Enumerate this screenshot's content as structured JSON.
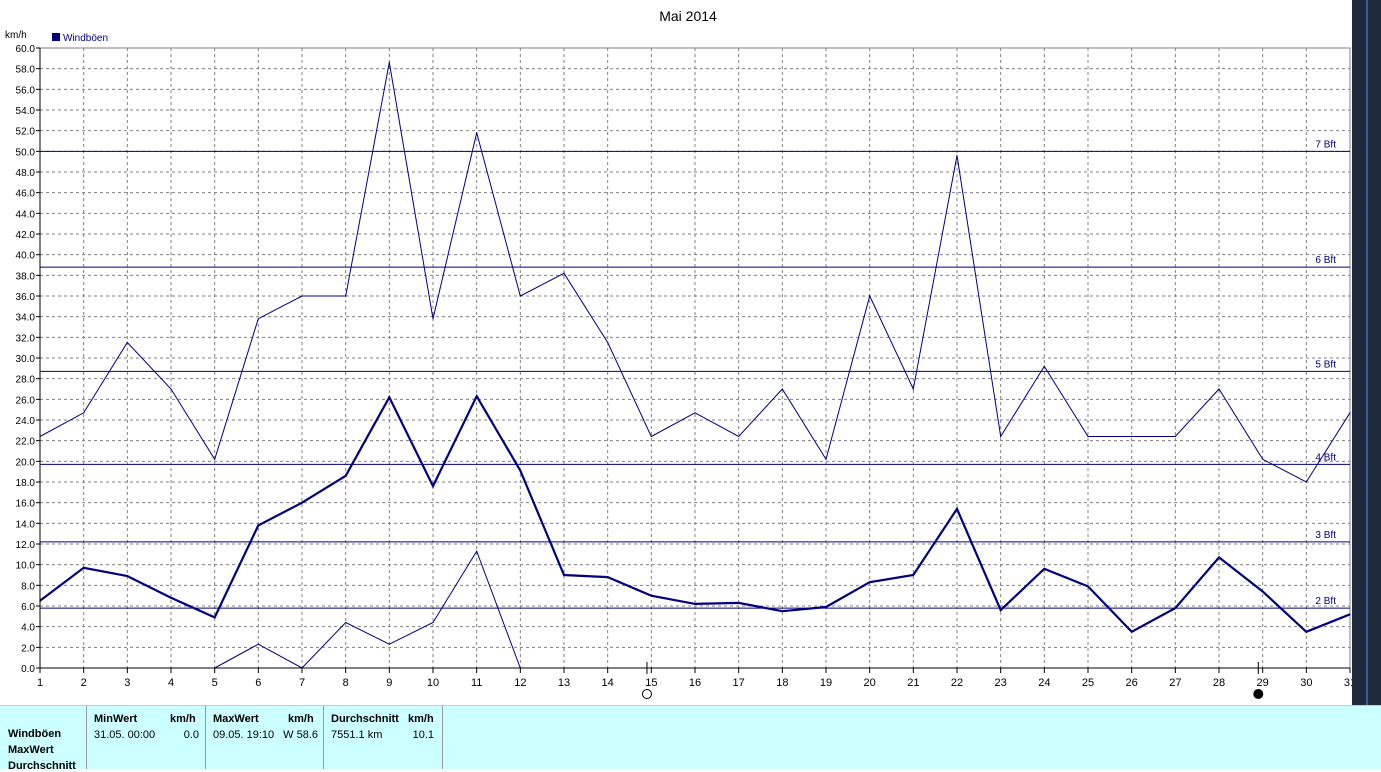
{
  "chart_data": {
    "type": "line",
    "title": "Mai 2014",
    "ylabel": "km/h",
    "xlabel": "",
    "ylim": [
      0,
      60
    ],
    "xlim": [
      1,
      31
    ],
    "grid": true,
    "legend": {
      "position": "top-left",
      "entries": [
        "Windböen"
      ]
    },
    "x_ticks": [
      "1",
      "2",
      "3",
      "4",
      "5",
      "6",
      "7",
      "8",
      "9",
      "10",
      "11",
      "12",
      "13",
      "14",
      "15",
      "16",
      "17",
      "18",
      "19",
      "20",
      "21",
      "22",
      "23",
      "24",
      "25",
      "26",
      "27",
      "28",
      "29",
      "30",
      "31"
    ],
    "y_ticks": [
      "0.0",
      "2.0",
      "4.0",
      "6.0",
      "8.0",
      "10.0",
      "12.0",
      "14.0",
      "16.0",
      "18.0",
      "20.0",
      "22.0",
      "24.0",
      "26.0",
      "28.0",
      "30.0",
      "32.0",
      "34.0",
      "36.0",
      "38.0",
      "40.0",
      "42.0",
      "44.0",
      "46.0",
      "48.0",
      "50.0",
      "52.0",
      "54.0",
      "56.0",
      "58.0",
      "60.0"
    ],
    "series": [
      {
        "name": "Windböen",
        "role": "max",
        "color": "#000080",
        "x": [
          1,
          2,
          3,
          4,
          5,
          6,
          7,
          8,
          9,
          10,
          11,
          12,
          13,
          14,
          15,
          16,
          17,
          18,
          19,
          20,
          21,
          22,
          23,
          24,
          25,
          26,
          27,
          28,
          29,
          30,
          31
        ],
        "values": [
          22.4,
          24.7,
          31.5,
          27.0,
          20.2,
          33.8,
          36.0,
          36.0,
          58.6,
          33.8,
          51.8,
          36.0,
          38.2,
          31.5,
          22.4,
          24.7,
          22.4,
          27.0,
          20.2,
          36.0,
          27.0,
          49.6,
          22.4,
          29.2,
          22.4,
          22.4,
          22.4,
          27.0,
          20.2,
          18.0,
          24.7
        ]
      },
      {
        "name": "Windböen",
        "role": "mean",
        "color": "#000080",
        "x": [
          1,
          2,
          3,
          4,
          5,
          6,
          7,
          8,
          9,
          10,
          11,
          12,
          13,
          14,
          15,
          16,
          17,
          18,
          19,
          20,
          21,
          22,
          23,
          24,
          25,
          26,
          27,
          28,
          29,
          30,
          31
        ],
        "values": [
          6.5,
          9.7,
          8.9,
          6.8,
          4.9,
          13.8,
          16.0,
          18.6,
          26.2,
          17.6,
          26.3,
          19.1,
          9.0,
          8.8,
          7.0,
          6.2,
          6.3,
          5.5,
          5.9,
          8.3,
          9.0,
          15.4,
          5.6,
          9.6,
          7.9,
          3.5,
          5.8,
          10.7,
          7.4,
          3.5,
          5.2
        ]
      },
      {
        "name": "Windböen",
        "role": "min",
        "color": "#000080",
        "x": [
          5,
          6,
          7,
          8,
          9,
          10,
          11,
          12
        ],
        "values": [
          0.0,
          2.3,
          0.0,
          4.4,
          2.3,
          4.4,
          11.3,
          0.0
        ]
      }
    ],
    "reference_lines": [
      {
        "label": "2 Bft",
        "value": 5.8
      },
      {
        "label": "3 Bft",
        "value": 12.2
      },
      {
        "label": "4 Bft",
        "value": 19.7
      },
      {
        "label": "5 Bft",
        "value": 28.7
      },
      {
        "label": "6 Bft",
        "value": 38.8
      },
      {
        "label": "7 Bft",
        "value": 50.0
      }
    ],
    "moon_markers": [
      {
        "day": 14.9,
        "phase": "full"
      },
      {
        "day": 28.9,
        "phase": "new"
      }
    ]
  },
  "stats": {
    "row_labels": [
      "Windböen",
      "MaxWert",
      "Durchschnitt"
    ],
    "min": {
      "header": "MinWert",
      "unit": "km/h",
      "date": "31.05.  00:00",
      "value": "0.0"
    },
    "max": {
      "header": "MaxWert",
      "unit": "km/h",
      "date": "09.05.  19:10",
      "value": "W 58.6"
    },
    "avg": {
      "header": "Durchschnitt",
      "unit": "km/h",
      "distance": "7551.1 km",
      "value": "10.1"
    }
  },
  "colors": {
    "series": "#000080",
    "grid": "#808080",
    "reference": "#000080",
    "stats_bg": "#ccffff"
  }
}
